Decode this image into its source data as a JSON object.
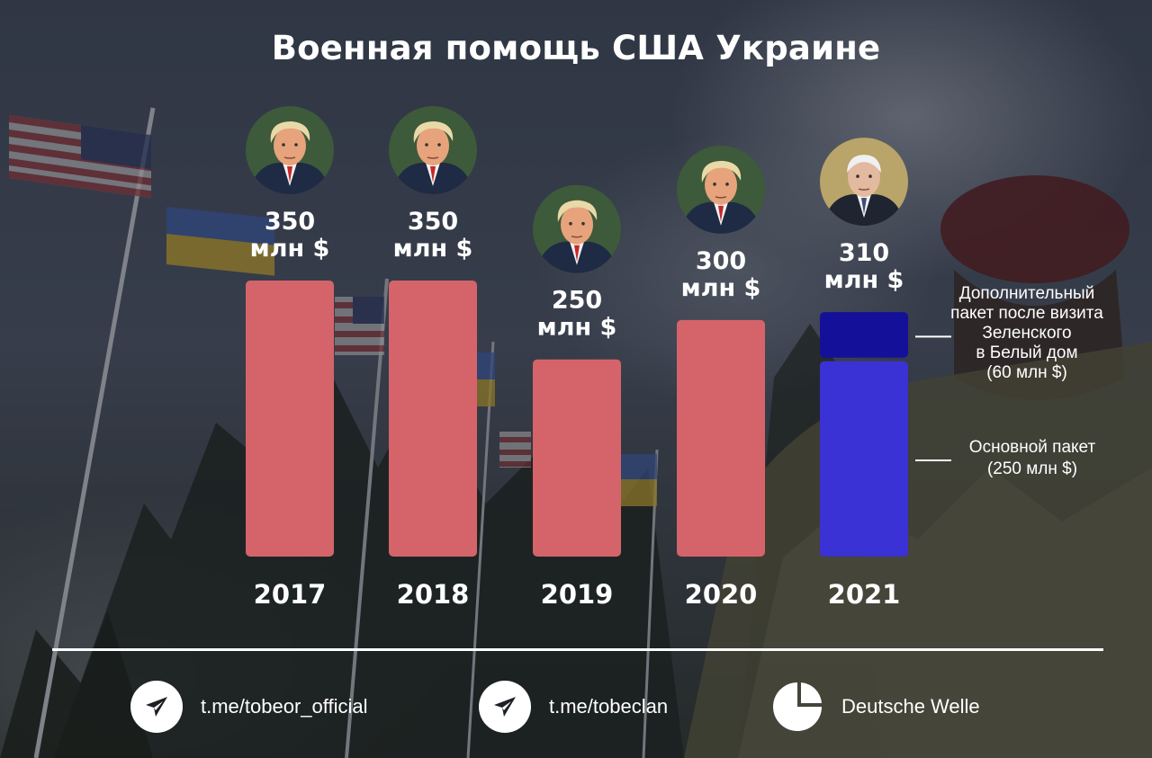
{
  "title": "Военная помощь США Украине",
  "colors": {
    "bar_default": "#d4646a",
    "bar_main_2021": "#3a32d4",
    "bar_extra_2021": "#14109a",
    "text": "#ffffff"
  },
  "chart_data": {
    "type": "bar",
    "title": "Военная помощь США Украине",
    "categories": [
      "2017",
      "2018",
      "2019",
      "2020",
      "2021"
    ],
    "values": [
      350,
      350,
      250,
      300,
      310
    ],
    "value_labels": [
      [
        "350",
        "млн $"
      ],
      [
        "350",
        "млн $"
      ],
      [
        "250",
        "млн $"
      ],
      [
        "300",
        "млн $"
      ],
      [
        "310",
        "млн $"
      ]
    ],
    "unit": "млн $",
    "stacked_2021": {
      "main": 250,
      "additional": 60
    },
    "annotations": {
      "additional": [
        "Дополнительный",
        "пакет после визита",
        "Зеленского",
        "в Белый дом",
        "(60 млн $)"
      ],
      "main": [
        "Основной пакет",
        "(250 млн $)"
      ]
    },
    "portraits": [
      "trump-portrait",
      "trump-portrait",
      "trump-portrait",
      "trump-portrait",
      "biden-portrait"
    ],
    "ylim": [
      0,
      350
    ],
    "grid": false
  },
  "footer": {
    "items": [
      {
        "icon": "telegram-icon",
        "text": "t.me/tobeor_official"
      },
      {
        "icon": "telegram-icon",
        "text": "t.me/tobeclan"
      },
      {
        "icon": "pie-chart-icon",
        "text": "Deutsche Welle"
      }
    ]
  }
}
